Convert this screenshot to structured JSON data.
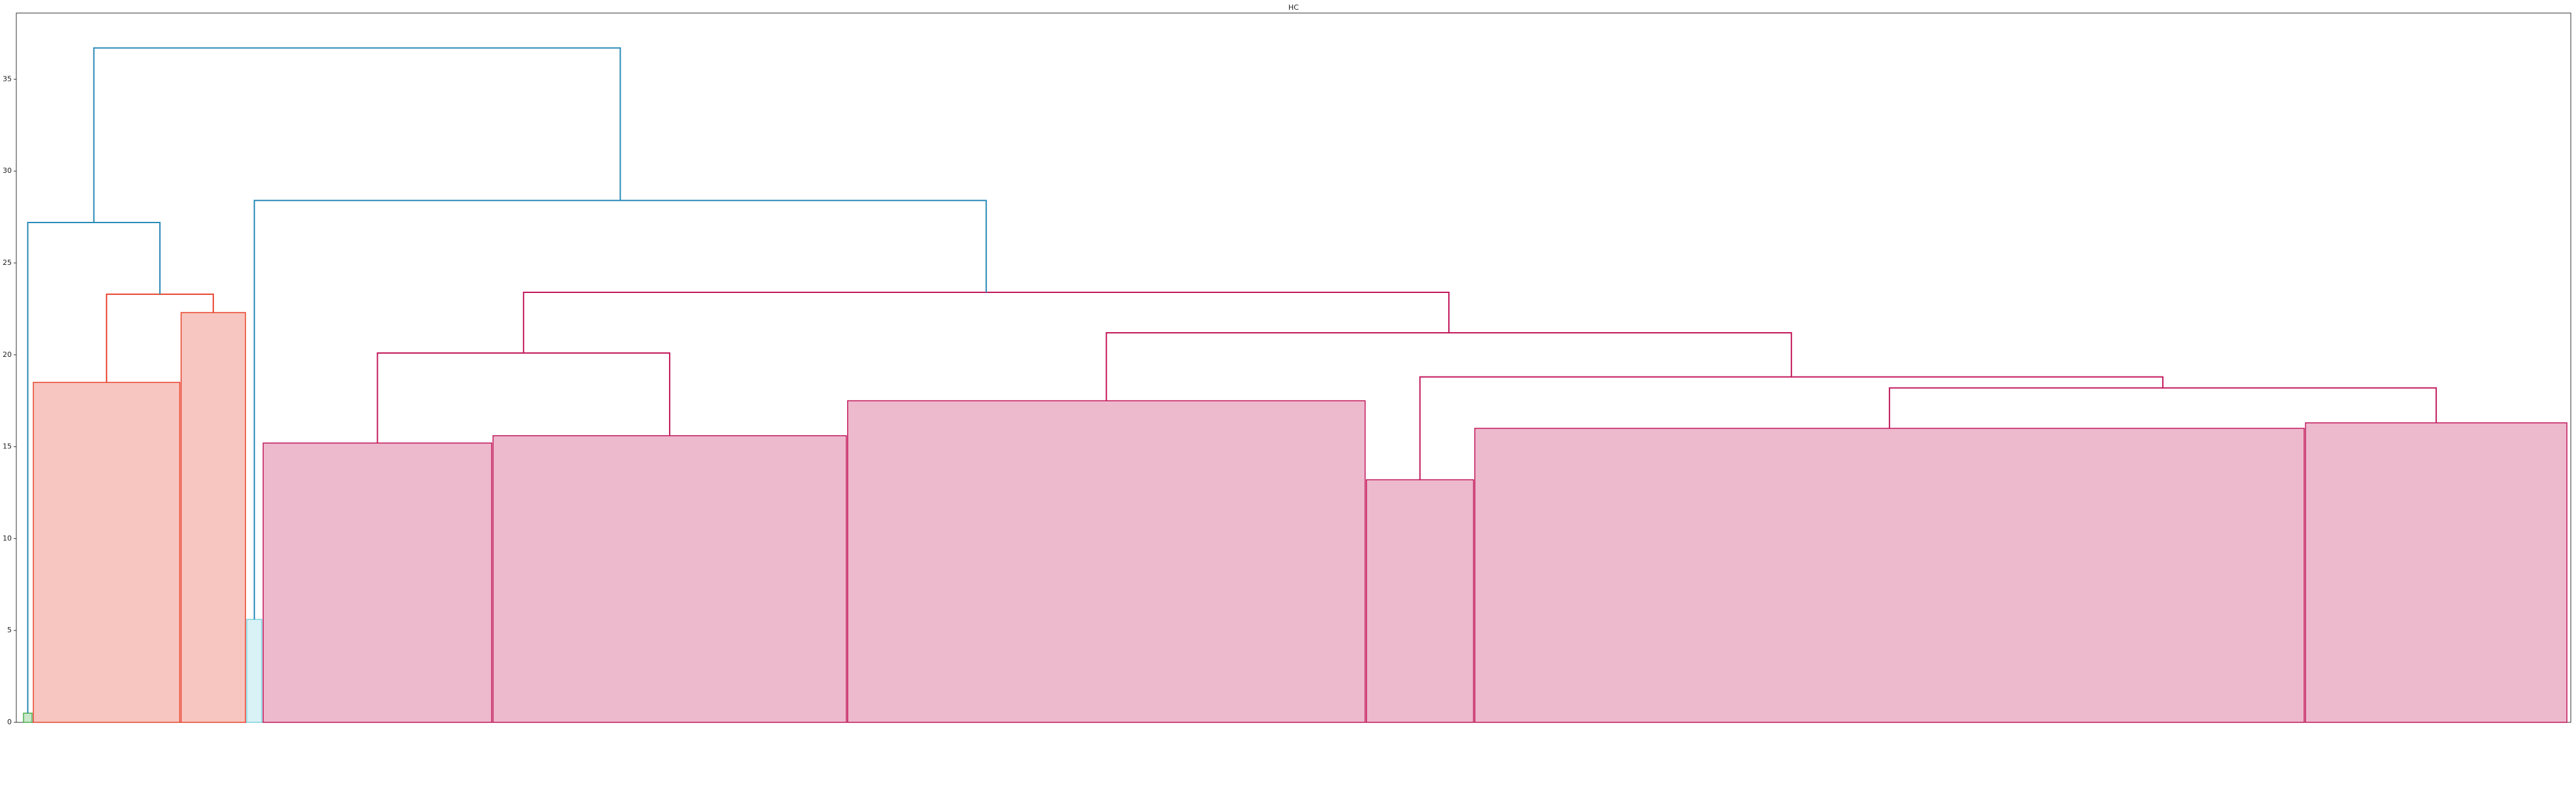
{
  "chart_data": {
    "type": "dendrogram",
    "title": "HC",
    "ylim": [
      0,
      38.6
    ],
    "yticks": [
      0,
      5,
      10,
      15,
      20,
      25,
      30,
      35
    ],
    "root": {
      "height": 36.7,
      "color": "#2a8ab8",
      "children": [
        {
          "height": 27.2,
          "color": "#2a8ab8",
          "children": [
            {
              "height": 0.5,
              "size": 3,
              "color": "#4caf50"
            },
            {
              "height": 23.3,
              "color": "#e8432d",
              "children": [
                {
                  "height": 18.5,
                  "size": 45,
                  "color": "#e8432d"
                },
                {
                  "height": 22.3,
                  "size": 20,
                  "color": "#e8432d"
                }
              ]
            }
          ]
        },
        {
          "height": 28.4,
          "color": "#2a8ab8",
          "children": [
            {
              "height": 5.6,
              "size": 5,
              "color": "#7fd3e0"
            },
            {
              "height": 23.4,
              "color": "#c2185b",
              "children": [
                {
                  "height": 20.1,
                  "color": "#c2185b",
                  "children": [
                    {
                      "height": 15.2,
                      "size": 70,
                      "color": "#c2185b"
                    },
                    {
                      "height": 15.6,
                      "size": 108,
                      "color": "#c2185b"
                    }
                  ]
                },
                {
                  "height": 21.2,
                  "color": "#c2185b",
                  "children": [
                    {
                      "height": 17.5,
                      "size": 158,
                      "color": "#c2185b"
                    },
                    {
                      "height": 18.8,
                      "color": "#c2185b",
                      "children": [
                        {
                          "height": 13.2,
                          "size": 33,
                          "color": "#c2185b"
                        },
                        {
                          "height": 18.2,
                          "color": "#c2185b",
                          "children": [
                            {
                              "height": 16.0,
                              "size": 253,
                              "color": "#c2185b"
                            },
                            {
                              "height": 16.3,
                              "size": 80,
                              "color": "#c2185b"
                            }
                          ]
                        }
                      ]
                    }
                  ]
                }
              ]
            }
          ]
        }
      ]
    }
  }
}
